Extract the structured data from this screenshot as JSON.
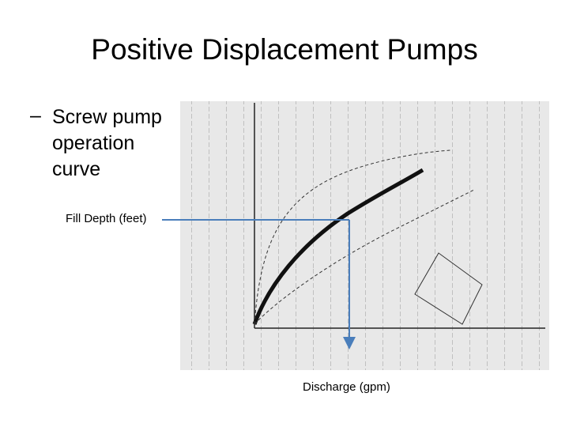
{
  "slide": {
    "title": "Positive Displacement Pumps",
    "bullet": {
      "marker": "–",
      "lines": [
        "Screw pump",
        "operation",
        "curve"
      ]
    },
    "figure": {
      "y_label": "Fill Depth (feet)",
      "x_label": "Discharge (gpm)"
    }
  }
}
